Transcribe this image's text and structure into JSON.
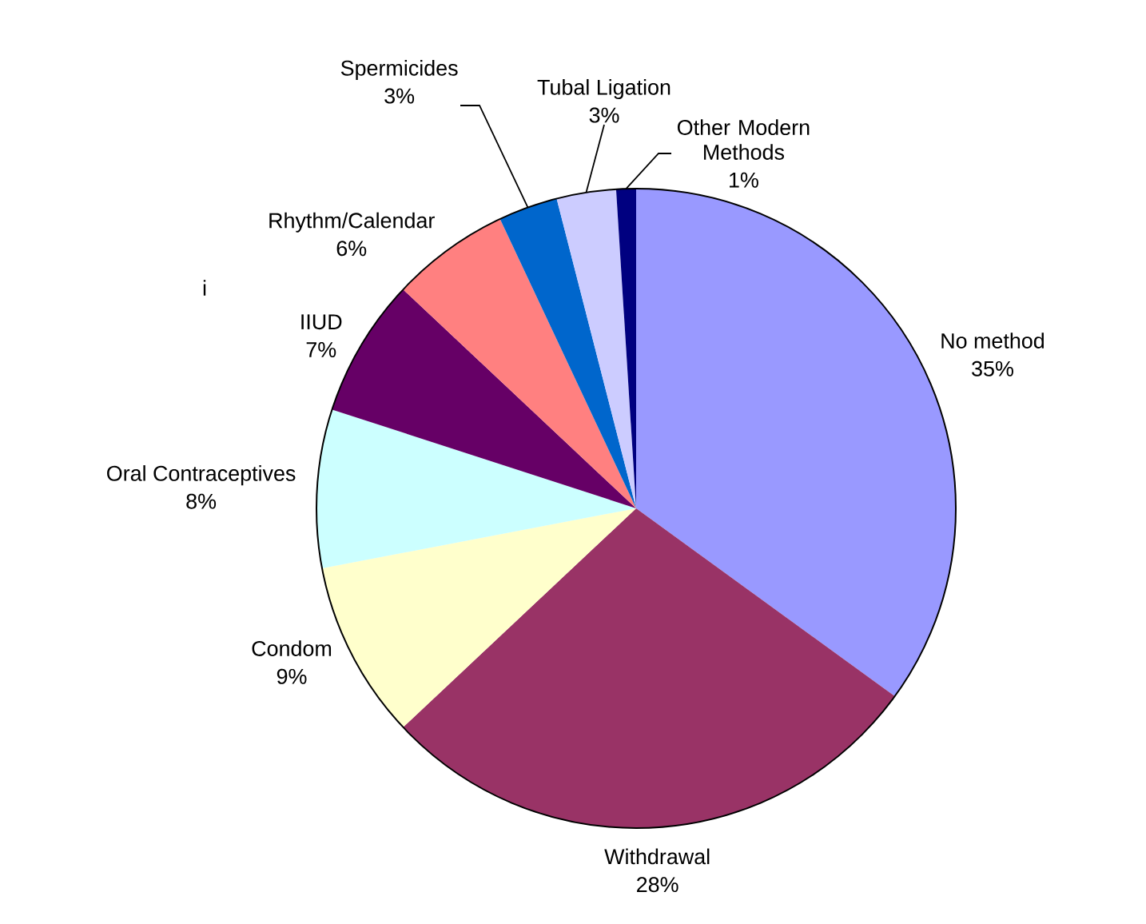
{
  "chart_data": {
    "type": "pie",
    "categories": [
      "No method",
      "Withdrawal",
      "Condom",
      "Oral Contraceptives",
      "IIUD",
      "Rhythm/Calendar",
      "Spermicides",
      "Tubal Ligation",
      "Other Modern Methods"
    ],
    "values": [
      35,
      28,
      9,
      8,
      7,
      6,
      3,
      3,
      1
    ],
    "value_labels": [
      "35%",
      "28%",
      "9%",
      "8%",
      "7%",
      "6%",
      "3%",
      "3%",
      "1%"
    ],
    "colors": [
      "#9999ff",
      "#993366",
      "#ffffcc",
      "#ccffff",
      "#660066",
      "#ff8080",
      "#0066cc",
      "#ccccff",
      "#000080"
    ],
    "annotations": [
      "i"
    ]
  }
}
